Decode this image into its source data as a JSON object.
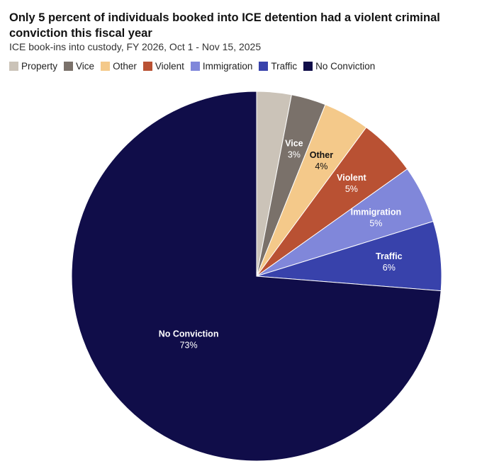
{
  "chart_data": {
    "type": "pie",
    "title": "Only 5 percent of individuals booked into ICE detention had a violent criminal conviction this fiscal year",
    "subtitle": "ICE book-ins into custody, FY 2026, Oct 1 - Nov 15, 2025",
    "legend_position": "top-left",
    "slices": [
      {
        "name": "Property",
        "value": 3,
        "color": "#cbc3b8",
        "label": "",
        "pct": "",
        "label_color": "#ffffff"
      },
      {
        "name": "Vice",
        "value": 3,
        "color": "#7a716a",
        "label": "Vice",
        "pct": "3%",
        "label_color": "#ffffff"
      },
      {
        "name": "Other",
        "value": 4,
        "color": "#f4c98a",
        "label": "Other",
        "pct": "4%",
        "label_color": "#121212"
      },
      {
        "name": "Violent",
        "value": 5,
        "color": "#b95133",
        "label": "Violent",
        "pct": "5%",
        "label_color": "#ffffff"
      },
      {
        "name": "Immigration",
        "value": 5,
        "color": "#8087da",
        "label": "Immigration",
        "pct": "5%",
        "label_color": "#ffffff"
      },
      {
        "name": "Traffic",
        "value": 6,
        "color": "#3842ab",
        "label": "Traffic",
        "pct": "6%",
        "label_color": "#ffffff"
      },
      {
        "name": "No Conviction",
        "value": 73,
        "color": "#100d49",
        "label": "No Conviction",
        "pct": "73%",
        "label_color": "#ffffff"
      }
    ]
  }
}
